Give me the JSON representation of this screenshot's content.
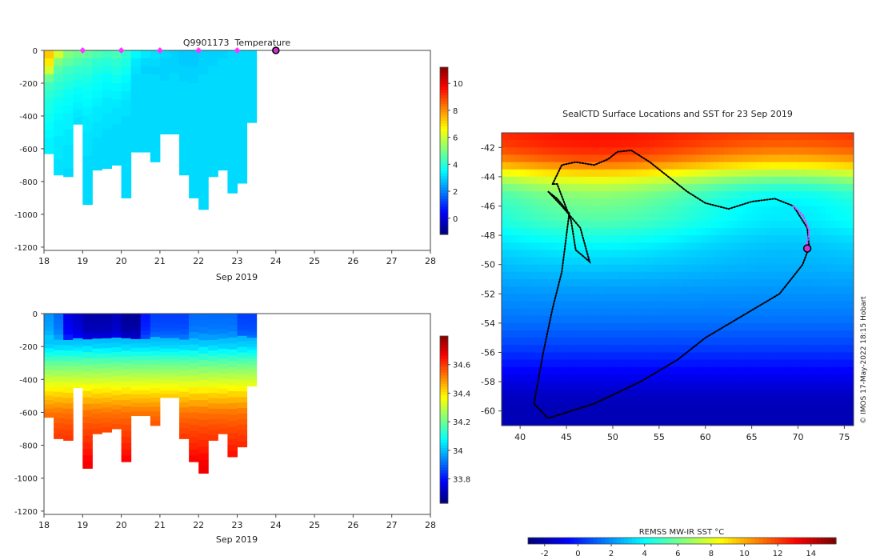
{
  "figure": {
    "credit": "© IMOS 17-May-2022 18:15 Hobart"
  },
  "chart_data": [
    {
      "type": "heatmap",
      "title": "Q9901173  Temperature",
      "xlabel": "Sep 2019",
      "ylabel": "",
      "x_ticks": [
        18,
        19,
        20,
        21,
        22,
        23,
        24,
        25,
        26,
        27,
        28
      ],
      "xlim": [
        18,
        28
      ],
      "y_ticks": [
        0,
        -200,
        -400,
        -600,
        -800,
        -1000,
        -1200
      ],
      "ylim": [
        -1220,
        0
      ],
      "colorbar": {
        "ticks": [
          0,
          2,
          4,
          6,
          8,
          10
        ],
        "range": [
          -1.2,
          11.2
        ],
        "colormap": "jet"
      },
      "surfacing_markers_x": [
        19,
        20,
        21,
        22,
        23
      ],
      "current_position_x": 24,
      "profiles": [
        {
          "x": 18.0,
          "max_depth": -630,
          "values": [
            7.2,
            6.8,
            6.0,
            4.8,
            4.2,
            4.0,
            3.8,
            3.7,
            3.6,
            3.5,
            3.4,
            3.3,
            3.3
          ]
        },
        {
          "x": 18.25,
          "max_depth": -760,
          "values": [
            6.0,
            5.0,
            4.5,
            4.2,
            4.0,
            3.8,
            3.6,
            3.5,
            3.4,
            3.3,
            3.3,
            3.2,
            3.2,
            3.2,
            3.1,
            3.1
          ]
        },
        {
          "x": 18.5,
          "max_depth": -770,
          "values": [
            5.0,
            4.6,
            4.2,
            4.0,
            3.8,
            3.6,
            3.5,
            3.4,
            3.3,
            3.3,
            3.2,
            3.2,
            3.1,
            3.1,
            3.1,
            3.0
          ]
        },
        {
          "x": 18.75,
          "max_depth": -450,
          "values": [
            4.8,
            4.4,
            4.1,
            3.9,
            3.7,
            3.5,
            3.4,
            3.3,
            3.2,
            3.1
          ]
        },
        {
          "x": 19.0,
          "max_depth": -940,
          "values": [
            4.6,
            4.2,
            4.0,
            3.8,
            3.6,
            3.5,
            3.4,
            3.3,
            3.2,
            3.2,
            3.1,
            3.1,
            3.1,
            3.0,
            3.0,
            3.0,
            3.0,
            3.0,
            3.0
          ]
        },
        {
          "x": 19.25,
          "max_depth": -730,
          "values": [
            4.4,
            4.0,
            3.8,
            3.6,
            3.5,
            3.4,
            3.3,
            3.2,
            3.2,
            3.1,
            3.1,
            3.0,
            3.0,
            3.0,
            3.0
          ]
        },
        {
          "x": 19.5,
          "max_depth": -720,
          "values": [
            4.2,
            3.9,
            3.7,
            3.5,
            3.4,
            3.3,
            3.2,
            3.2,
            3.1,
            3.1,
            3.0,
            3.0,
            3.0,
            3.0,
            3.0
          ]
        },
        {
          "x": 19.75,
          "max_depth": -700,
          "values": [
            4.3,
            4.0,
            3.8,
            3.6,
            3.4,
            3.3,
            3.2,
            3.1,
            3.1,
            3.0,
            3.0,
            3.0,
            3.0,
            3.0
          ]
        },
        {
          "x": 20.0,
          "max_depth": -900,
          "values": [
            4.0,
            3.8,
            3.6,
            3.4,
            3.3,
            3.2,
            3.1,
            3.1,
            3.0,
            3.0,
            3.0,
            3.0,
            3.0,
            3.0,
            3.0,
            3.0,
            3.0,
            3.0
          ]
        },
        {
          "x": 20.25,
          "max_depth": -620,
          "values": [
            3.4,
            3.2,
            3.1,
            3.0,
            3.0,
            3.0,
            3.0,
            3.0,
            3.0,
            3.0,
            3.0,
            3.0,
            3.0
          ]
        },
        {
          "x": 20.5,
          "max_depth": -620,
          "values": [
            3.2,
            3.0,
            2.9,
            3.0,
            3.0,
            3.0,
            3.0,
            3.0,
            3.0,
            3.0,
            3.0,
            3.0,
            3.0
          ]
        },
        {
          "x": 20.75,
          "max_depth": -680,
          "values": [
            3.1,
            3.0,
            2.9,
            3.0,
            3.0,
            3.0,
            3.0,
            3.0,
            3.0,
            3.0,
            3.0,
            3.0,
            3.0,
            3.0
          ]
        },
        {
          "x": 21.0,
          "max_depth": -510,
          "values": [
            3.0,
            2.9,
            2.9,
            2.9,
            3.0,
            3.0,
            3.0,
            3.0,
            3.0,
            3.0,
            3.0
          ]
        },
        {
          "x": 21.25,
          "max_depth": -510,
          "values": [
            2.9,
            2.9,
            2.9,
            3.0,
            3.0,
            3.0,
            3.0,
            3.0,
            3.0,
            3.0,
            3.0
          ]
        },
        {
          "x": 21.5,
          "max_depth": -760,
          "values": [
            2.8,
            2.8,
            2.9,
            2.9,
            3.0,
            3.0,
            3.0,
            3.0,
            3.0,
            3.0,
            3.0,
            3.0,
            3.0,
            3.0,
            3.0,
            3.0
          ]
        },
        {
          "x": 21.75,
          "max_depth": -900,
          "values": [
            2.8,
            2.8,
            2.9,
            2.9,
            3.0,
            3.0,
            3.0,
            3.0,
            3.0,
            3.0,
            3.0,
            3.0,
            3.0,
            3.0,
            3.0,
            3.0,
            3.0,
            3.0
          ]
        },
        {
          "x": 22.0,
          "max_depth": -970,
          "values": [
            2.9,
            2.9,
            2.9,
            3.0,
            3.0,
            3.0,
            3.0,
            3.0,
            3.0,
            3.0,
            3.0,
            3.0,
            3.0,
            3.0,
            3.0,
            3.0,
            3.0,
            3.0,
            3.0,
            3.0
          ]
        },
        {
          "x": 22.25,
          "max_depth": -770,
          "values": [
            2.9,
            2.9,
            3.0,
            3.0,
            3.0,
            3.0,
            3.0,
            3.0,
            3.0,
            3.0,
            3.0,
            3.0,
            3.0,
            3.0,
            3.0,
            3.0
          ]
        },
        {
          "x": 22.5,
          "max_depth": -730,
          "values": [
            2.9,
            3.0,
            3.0,
            3.0,
            3.0,
            3.0,
            3.0,
            3.0,
            3.0,
            3.0,
            3.0,
            3.0,
            3.0,
            3.0,
            3.0
          ]
        },
        {
          "x": 22.75,
          "max_depth": -870,
          "values": [
            3.0,
            3.0,
            3.0,
            3.0,
            3.0,
            3.0,
            3.0,
            3.0,
            3.0,
            3.0,
            3.0,
            3.0,
            3.0,
            3.0,
            3.0,
            3.0,
            3.0,
            3.0
          ]
        },
        {
          "x": 23.0,
          "max_depth": -810,
          "values": [
            3.0,
            3.0,
            3.0,
            3.0,
            3.0,
            3.0,
            3.0,
            3.0,
            3.0,
            3.0,
            3.0,
            3.0,
            3.0,
            3.0,
            3.0,
            3.0,
            3.0
          ]
        },
        {
          "x": 23.25,
          "max_depth": -440,
          "values": [
            3.0,
            3.0,
            3.0,
            3.0,
            3.0,
            3.0,
            3.0,
            3.0,
            3.0
          ]
        }
      ]
    },
    {
      "type": "heatmap",
      "title": "",
      "xlabel": "Sep 2019",
      "ylabel": "",
      "x_ticks": [
        18,
        19,
        20,
        21,
        22,
        23,
        24,
        25,
        26,
        27,
        28
      ],
      "xlim": [
        18,
        28
      ],
      "y_ticks": [
        0,
        -200,
        -400,
        -600,
        -800,
        -1000,
        -1200
      ],
      "ylim": [
        -1220,
        0
      ],
      "colorbar": {
        "ticks": [
          33.8,
          34,
          34.2,
          34.4,
          34.6
        ],
        "labels": [
          "33.8",
          "34",
          "34.2",
          "34.4",
          "34.6"
        ],
        "range": [
          33.63,
          34.8
        ],
        "colormap": "jet"
      },
      "salinity_profile_depths": [
        0,
        -100,
        -200,
        -300,
        -400,
        -500,
        -600,
        -700,
        -800,
        -900,
        -1000
      ],
      "salinity_profile_values": [
        33.92,
        33.95,
        34.02,
        34.18,
        34.3,
        34.42,
        34.52,
        34.57,
        34.61,
        34.66,
        34.68
      ],
      "surface_salinity_by_profile": [
        33.95,
        33.9,
        33.75,
        33.72,
        33.68,
        33.68,
        33.68,
        33.7,
        33.66,
        33.66,
        33.8,
        33.85,
        33.85,
        33.85,
        33.85,
        33.9,
        33.9,
        33.9,
        33.9,
        33.9,
        33.85,
        33.85
      ]
    },
    {
      "type": "heatmap",
      "title": "SealCTD Surface Locations and SST for 23 Sep 2019",
      "xlabel": "",
      "ylabel": "",
      "x_ticks": [
        40,
        45,
        50,
        55,
        60,
        65,
        70,
        75
      ],
      "xlim": [
        38,
        76
      ],
      "y_ticks": [
        -42,
        -44,
        -46,
        -48,
        -50,
        -52,
        -54,
        -56,
        -58,
        -60
      ],
      "ylim": [
        -61,
        -41
      ],
      "colorbar": {
        "label": "REMSS MW-IR SST °C",
        "ticks": [
          -2,
          0,
          2,
          4,
          6,
          8,
          10,
          12,
          14
        ],
        "range": [
          -3,
          15.5
        ],
        "colormap": "jet"
      },
      "sst_by_latitude": [
        {
          "lat": -41,
          "sst": 12.5
        },
        {
          "lat": -42,
          "sst": 12.0
        },
        {
          "lat": -43,
          "sst": 10.5
        },
        {
          "lat": -44,
          "sst": 7.5
        },
        {
          "lat": -45,
          "sst": 5.5
        },
        {
          "lat": -46,
          "sst": 4.8
        },
        {
          "lat": -47,
          "sst": 4.5
        },
        {
          "lat": -48,
          "sst": 3.8
        },
        {
          "lat": -49,
          "sst": 3.2
        },
        {
          "lat": -50,
          "sst": 2.8
        },
        {
          "lat": -51,
          "sst": 2.4
        },
        {
          "lat": -52,
          "sst": 2.0
        },
        {
          "lat": -53,
          "sst": 1.7
        },
        {
          "lat": -54,
          "sst": 1.3
        },
        {
          "lat": -55,
          "sst": 0.8
        },
        {
          "lat": -56,
          "sst": 0.2
        },
        {
          "lat": -57,
          "sst": -0.5
        },
        {
          "lat": -58,
          "sst": -1.2
        },
        {
          "lat": -59,
          "sst": -1.8
        },
        {
          "lat": -60,
          "sst": -2.0
        },
        {
          "lat": -61,
          "sst": -2.0
        }
      ],
      "track": [
        [
          43.5,
          -44.5
        ],
        [
          44.5,
          -43.2
        ],
        [
          46.0,
          -43.0
        ],
        [
          48.0,
          -43.2
        ],
        [
          49.5,
          -42.8
        ],
        [
          50.5,
          -42.3
        ],
        [
          52.0,
          -42.2
        ],
        [
          54.0,
          -43.0
        ],
        [
          56.0,
          -44.0
        ],
        [
          58.0,
          -45.0
        ],
        [
          60.0,
          -45.8
        ],
        [
          62.5,
          -46.2
        ],
        [
          65.0,
          -45.7
        ],
        [
          67.5,
          -45.5
        ],
        [
          69.5,
          -46.0
        ],
        [
          71.0,
          -47.5
        ],
        [
          71.2,
          -48.8
        ],
        [
          70.5,
          -50.0
        ],
        [
          68.0,
          -52.0
        ],
        [
          64.0,
          -53.5
        ],
        [
          60.0,
          -55.0
        ],
        [
          57.0,
          -56.5
        ],
        [
          53.0,
          -58.0
        ],
        [
          48.0,
          -59.5
        ],
        [
          43.0,
          -60.5
        ],
        [
          41.5,
          -59.5
        ],
        [
          42.5,
          -56.0
        ],
        [
          43.5,
          -53.0
        ],
        [
          44.5,
          -50.5
        ],
        [
          45.0,
          -48.0
        ],
        [
          45.3,
          -46.5
        ],
        [
          44.0,
          -45.5
        ],
        [
          43.0,
          -45.0
        ],
        [
          44.5,
          -46.0
        ],
        [
          46.5,
          -47.5
        ],
        [
          47.5,
          -49.8
        ],
        [
          46.0,
          -49.0
        ],
        [
          45.5,
          -47.0
        ],
        [
          44.0,
          -44.5
        ],
        [
          43.5,
          -44.5
        ]
      ],
      "recent_track": [
        [
          69.5,
          -46.0
        ],
        [
          70.6,
          -46.7
        ],
        [
          71.2,
          -47.7
        ],
        [
          71.0,
          -48.6
        ]
      ],
      "current_position": [
        71.0,
        -48.9
      ]
    }
  ]
}
